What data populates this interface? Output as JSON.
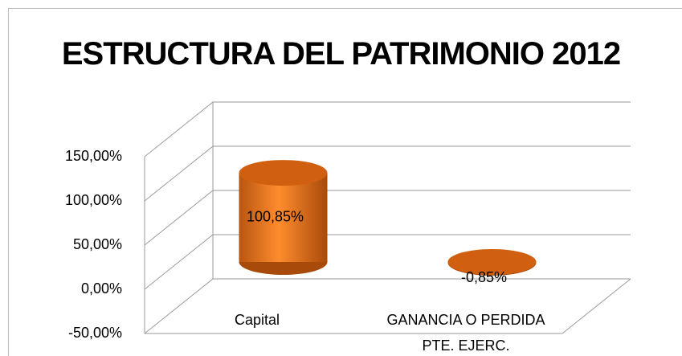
{
  "chart_data": {
    "type": "bar",
    "title": "ESTRUCTURA DEL PATRIMONIO 2012",
    "categories": [
      "Capital",
      "GANANCIA O PERDIDA PTE. EJERC."
    ],
    "values": [
      100.85,
      -0.85
    ],
    "value_labels": [
      "100,85%",
      "-0,85%"
    ],
    "color": "#f07820",
    "ylim": [
      -50,
      150
    ],
    "yticks": [
      {
        "value": -50,
        "label": "-50,00%"
      },
      {
        "value": 0,
        "label": "0,00%"
      },
      {
        "value": 50,
        "label": "50,00%"
      },
      {
        "value": 100,
        "label": "100,00%"
      },
      {
        "value": 150,
        "label": "150,00%"
      }
    ],
    "grid": true
  }
}
